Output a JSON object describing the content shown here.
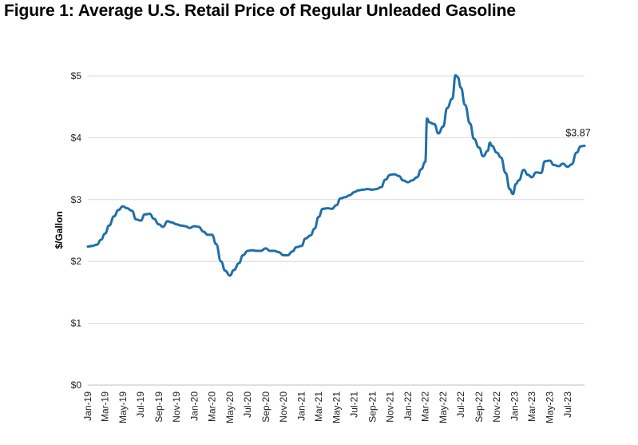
{
  "chart_data": {
    "type": "line",
    "title": "Figure 1: Average U.S. Retail Price of Regular Unleaded Gasoline",
    "ylabel": "$/Gallon",
    "xlabel": "",
    "ylim": [
      0,
      5
    ],
    "yticks": [
      "$0",
      "$1",
      "$2",
      "$3",
      "$4",
      "$5"
    ],
    "ytick_values": [
      0,
      1,
      2,
      3,
      4,
      5
    ],
    "xticks": [
      "Jan-19",
      "Mar-19",
      "May-19",
      "Jul-19",
      "Sep-19",
      "Nov-19",
      "Jan-20",
      "Mar-20",
      "May-20",
      "Jul-20",
      "Sep-20",
      "Nov-20",
      "Jan-21",
      "Mar-21",
      "May-21",
      "Jul-21",
      "Sep-21",
      "Nov-21",
      "Jan-22",
      "Mar-22",
      "May-22",
      "Jul-22",
      "Sep-22",
      "Nov-22",
      "Jan-23",
      "Mar-23",
      "May-23",
      "Jul-23"
    ],
    "x_range": [
      "2019-01-01",
      "2023-08-28"
    ],
    "grid": "horizontal",
    "line_color": "#1f6fa8",
    "annotation": "$3.87",
    "series": [
      {
        "points": [
          [
            "2019-01-01",
            2.24
          ],
          [
            "2019-01-15",
            2.25
          ],
          [
            "2019-02-01",
            2.27
          ],
          [
            "2019-02-15",
            2.35
          ],
          [
            "2019-03-01",
            2.45
          ],
          [
            "2019-03-15",
            2.58
          ],
          [
            "2019-04-01",
            2.73
          ],
          [
            "2019-04-15",
            2.83
          ],
          [
            "2019-05-01",
            2.89
          ],
          [
            "2019-05-15",
            2.86
          ],
          [
            "2019-06-01",
            2.82
          ],
          [
            "2019-06-15",
            2.68
          ],
          [
            "2019-07-01",
            2.66
          ],
          [
            "2019-07-15",
            2.76
          ],
          [
            "2019-08-01",
            2.77
          ],
          [
            "2019-08-15",
            2.69
          ],
          [
            "2019-09-01",
            2.6
          ],
          [
            "2019-09-15",
            2.56
          ],
          [
            "2019-10-01",
            2.65
          ],
          [
            "2019-10-15",
            2.63
          ],
          [
            "2019-11-01",
            2.6
          ],
          [
            "2019-11-15",
            2.58
          ],
          [
            "2019-12-01",
            2.57
          ],
          [
            "2019-12-15",
            2.54
          ],
          [
            "2020-01-01",
            2.57
          ],
          [
            "2020-01-15",
            2.56
          ],
          [
            "2020-02-01",
            2.48
          ],
          [
            "2020-02-15",
            2.43
          ],
          [
            "2020-03-01",
            2.43
          ],
          [
            "2020-03-15",
            2.28
          ],
          [
            "2020-04-01",
            2.0
          ],
          [
            "2020-04-15",
            1.85
          ],
          [
            "2020-05-01",
            1.77
          ],
          [
            "2020-05-15",
            1.86
          ],
          [
            "2020-06-01",
            1.97
          ],
          [
            "2020-06-15",
            2.1
          ],
          [
            "2020-07-01",
            2.17
          ],
          [
            "2020-07-15",
            2.18
          ],
          [
            "2020-08-01",
            2.17
          ],
          [
            "2020-08-15",
            2.17
          ],
          [
            "2020-09-01",
            2.21
          ],
          [
            "2020-09-15",
            2.17
          ],
          [
            "2020-10-01",
            2.17
          ],
          [
            "2020-10-15",
            2.15
          ],
          [
            "2020-11-01",
            2.1
          ],
          [
            "2020-11-15",
            2.1
          ],
          [
            "2020-12-01",
            2.16
          ],
          [
            "2020-12-15",
            2.23
          ],
          [
            "2021-01-01",
            2.25
          ],
          [
            "2021-01-15",
            2.37
          ],
          [
            "2021-02-01",
            2.42
          ],
          [
            "2021-02-15",
            2.53
          ],
          [
            "2021-03-01",
            2.72
          ],
          [
            "2021-03-15",
            2.85
          ],
          [
            "2021-04-01",
            2.86
          ],
          [
            "2021-04-15",
            2.85
          ],
          [
            "2021-05-01",
            2.91
          ],
          [
            "2021-05-15",
            3.02
          ],
          [
            "2021-06-01",
            3.04
          ],
          [
            "2021-06-15",
            3.07
          ],
          [
            "2021-07-01",
            3.12
          ],
          [
            "2021-07-15",
            3.15
          ],
          [
            "2021-08-01",
            3.16
          ],
          [
            "2021-08-15",
            3.17
          ],
          [
            "2021-09-01",
            3.16
          ],
          [
            "2021-09-15",
            3.17
          ],
          [
            "2021-10-01",
            3.2
          ],
          [
            "2021-10-15",
            3.32
          ],
          [
            "2021-11-01",
            3.4
          ],
          [
            "2021-11-15",
            3.41
          ],
          [
            "2021-12-01",
            3.38
          ],
          [
            "2021-12-15",
            3.31
          ],
          [
            "2022-01-01",
            3.28
          ],
          [
            "2022-01-15",
            3.31
          ],
          [
            "2022-02-01",
            3.36
          ],
          [
            "2022-02-15",
            3.49
          ],
          [
            "2022-03-01",
            3.61
          ],
          [
            "2022-03-07",
            4.31
          ],
          [
            "2022-03-15",
            4.25
          ],
          [
            "2022-04-01",
            4.22
          ],
          [
            "2022-04-15",
            4.07
          ],
          [
            "2022-05-01",
            4.18
          ],
          [
            "2022-05-15",
            4.48
          ],
          [
            "2022-06-01",
            4.63
          ],
          [
            "2022-06-13",
            5.01
          ],
          [
            "2022-06-20",
            4.98
          ],
          [
            "2022-07-01",
            4.81
          ],
          [
            "2022-07-15",
            4.53
          ],
          [
            "2022-08-01",
            4.23
          ],
          [
            "2022-08-15",
            3.98
          ],
          [
            "2022-09-01",
            3.84
          ],
          [
            "2022-09-15",
            3.7
          ],
          [
            "2022-10-01",
            3.79
          ],
          [
            "2022-10-08",
            3.92
          ],
          [
            "2022-10-15",
            3.87
          ],
          [
            "2022-11-01",
            3.76
          ],
          [
            "2022-11-15",
            3.68
          ],
          [
            "2022-12-01",
            3.43
          ],
          [
            "2022-12-15",
            3.17
          ],
          [
            "2022-12-26",
            3.09
          ],
          [
            "2023-01-05",
            3.25
          ],
          [
            "2023-01-15",
            3.31
          ],
          [
            "2023-02-01",
            3.48
          ],
          [
            "2023-02-15",
            3.4
          ],
          [
            "2023-03-01",
            3.36
          ],
          [
            "2023-03-15",
            3.44
          ],
          [
            "2023-04-01",
            3.43
          ],
          [
            "2023-04-15",
            3.62
          ],
          [
            "2023-05-01",
            3.63
          ],
          [
            "2023-05-15",
            3.56
          ],
          [
            "2023-06-01",
            3.54
          ],
          [
            "2023-06-15",
            3.58
          ],
          [
            "2023-07-01",
            3.53
          ],
          [
            "2023-07-15",
            3.57
          ],
          [
            "2023-08-01",
            3.76
          ],
          [
            "2023-08-15",
            3.86
          ],
          [
            "2023-08-28",
            3.87
          ]
        ]
      }
    ]
  }
}
